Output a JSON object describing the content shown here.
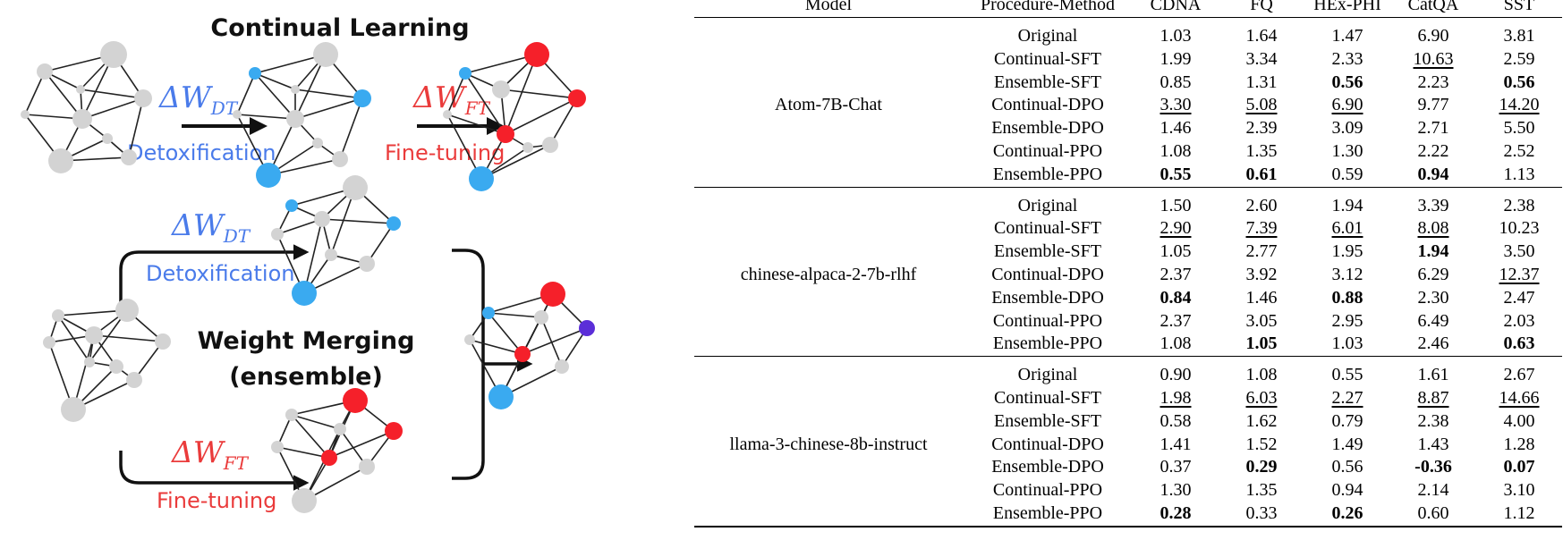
{
  "figure": {
    "top_label": "Continual Learning",
    "merge_label_line1": "Weight Merging",
    "merge_label_line2": "(ensemble)",
    "delta_dt_prefix": "ΔW",
    "delta_dt_sub": "DT",
    "delta_ft_prefix": "ΔW",
    "delta_ft_sub": "FT",
    "detox_label": "Detoxification",
    "finetune_label": "Fine-tuning",
    "colors": {
      "gray": "#d3d3d3",
      "blue": "#3aaaf0",
      "red": "#f5202a",
      "purple": "#5b2ed8",
      "detox_text": "#4a7bea",
      "ft_text": "#ea3b3b"
    }
  },
  "table": {
    "headers": [
      "Model",
      "Procedure-Method",
      "CDNA",
      "FQ",
      "HEx-PHI",
      "CatQA",
      "SST"
    ],
    "groups": [
      {
        "model": "Atom-7B-Chat",
        "rows": [
          {
            "proc": "Original",
            "vals": [
              "1.03",
              "1.64",
              "1.47",
              "6.90",
              "3.81"
            ],
            "bold": [],
            "under": []
          },
          {
            "proc": "Continual-SFT",
            "vals": [
              "1.99",
              "3.34",
              "2.33",
              "10.63",
              "2.59"
            ],
            "bold": [],
            "under": [
              3
            ]
          },
          {
            "proc": "Ensemble-SFT",
            "vals": [
              "0.85",
              "1.31",
              "0.56",
              "2.23",
              "0.56"
            ],
            "bold": [
              2,
              4
            ],
            "under": []
          },
          {
            "proc": "Continual-DPO",
            "vals": [
              "3.30",
              "5.08",
              "6.90",
              "9.77",
              "14.20"
            ],
            "bold": [],
            "under": [
              0,
              1,
              2,
              4
            ]
          },
          {
            "proc": "Ensemble-DPO",
            "vals": [
              "1.46",
              "2.39",
              "3.09",
              "2.71",
              "5.50"
            ],
            "bold": [],
            "under": []
          },
          {
            "proc": "Continual-PPO",
            "vals": [
              "1.08",
              "1.35",
              "1.30",
              "2.22",
              "2.52"
            ],
            "bold": [],
            "under": []
          },
          {
            "proc": "Ensemble-PPO",
            "vals": [
              "0.55",
              "0.61",
              "0.59",
              "0.94",
              "1.13"
            ],
            "bold": [
              0,
              1,
              3
            ],
            "under": []
          }
        ]
      },
      {
        "model": "chinese-alpaca-2-7b-rlhf",
        "rows": [
          {
            "proc": "Original",
            "vals": [
              "1.50",
              "2.60",
              "1.94",
              "3.39",
              "2.38"
            ],
            "bold": [],
            "under": []
          },
          {
            "proc": "Continual-SFT",
            "vals": [
              "2.90",
              "7.39",
              "6.01",
              "8.08",
              "10.23"
            ],
            "bold": [],
            "under": [
              0,
              1,
              2,
              3
            ]
          },
          {
            "proc": "Ensemble-SFT",
            "vals": [
              "1.05",
              "2.77",
              "1.95",
              "1.94",
              "3.50"
            ],
            "bold": [
              3
            ],
            "under": []
          },
          {
            "proc": "Continual-DPO",
            "vals": [
              "2.37",
              "3.92",
              "3.12",
              "6.29",
              "12.37"
            ],
            "bold": [],
            "under": [
              4
            ]
          },
          {
            "proc": "Ensemble-DPO",
            "vals": [
              "0.84",
              "1.46",
              "0.88",
              "2.30",
              "2.47"
            ],
            "bold": [
              0,
              2
            ],
            "under": []
          },
          {
            "proc": "Continual-PPO",
            "vals": [
              "2.37",
              "3.05",
              "2.95",
              "6.49",
              "2.03"
            ],
            "bold": [],
            "under": []
          },
          {
            "proc": "Ensemble-PPO",
            "vals": [
              "1.08",
              "1.05",
              "1.03",
              "2.46",
              "0.63"
            ],
            "bold": [
              1,
              4
            ],
            "under": []
          }
        ]
      },
      {
        "model": "llama-3-chinese-8b-instruct",
        "rows": [
          {
            "proc": "Original",
            "vals": [
              "0.90",
              "1.08",
              "0.55",
              "1.61",
              "2.67"
            ],
            "bold": [],
            "under": []
          },
          {
            "proc": "Continual-SFT",
            "vals": [
              "1.98",
              "6.03",
              "2.27",
              "8.87",
              "14.66"
            ],
            "bold": [],
            "under": [
              0,
              1,
              2,
              3,
              4
            ]
          },
          {
            "proc": "Ensemble-SFT",
            "vals": [
              "0.58",
              "1.62",
              "0.79",
              "2.38",
              "4.00"
            ],
            "bold": [],
            "under": []
          },
          {
            "proc": "Continual-DPO",
            "vals": [
              "1.41",
              "1.52",
              "1.49",
              "1.43",
              "1.28"
            ],
            "bold": [],
            "under": []
          },
          {
            "proc": "Ensemble-DPO",
            "vals": [
              "0.37",
              "0.29",
              "0.56",
              "-0.36",
              "0.07"
            ],
            "bold": [
              1,
              3,
              4
            ],
            "under": []
          },
          {
            "proc": "Continual-PPO",
            "vals": [
              "1.30",
              "1.35",
              "0.94",
              "2.14",
              "3.10"
            ],
            "bold": [],
            "under": []
          },
          {
            "proc": "Ensemble-PPO",
            "vals": [
              "0.28",
              "0.33",
              "0.26",
              "0.60",
              "1.12"
            ],
            "bold": [
              0,
              2
            ],
            "under": []
          }
        ]
      }
    ]
  }
}
